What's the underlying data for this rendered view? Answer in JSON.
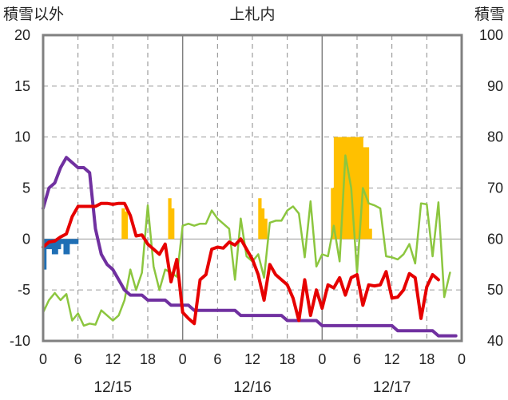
{
  "chart_data": {
    "type": "line",
    "title": "上札内",
    "ylabel_left": "積雪以外",
    "ylabel_right": "積雪",
    "ylim_left": [
      -10,
      20
    ],
    "yticks_left": [
      "20",
      "15",
      "10",
      "5",
      "0",
      "-5",
      "-10"
    ],
    "ylim_right": [
      40,
      100
    ],
    "yticks_right": [
      "100",
      "90",
      "80",
      "70",
      "60",
      "50",
      "40"
    ],
    "xlim_hours": [
      0,
      72
    ],
    "xtick_labels": [
      "0",
      "6",
      "12",
      "18",
      "0",
      "6",
      "12",
      "18",
      "0",
      "6",
      "12",
      "18",
      "0"
    ],
    "date_labels": [
      "12/15",
      "12/16",
      "12/17"
    ],
    "grid": true,
    "colors": {
      "temperature": "#e60000",
      "green_series": "#8cc63f",
      "snow_depth": "#7030a0",
      "orange_bars": "#ffc000",
      "blue_bars": "#1f6fb5",
      "frame": "#808080"
    },
    "series": [
      {
        "key": "temperature",
        "axis": "left",
        "x": [
          0,
          1,
          2,
          3,
          4,
          5,
          6,
          7,
          8,
          9,
          10,
          11,
          12,
          13,
          14,
          15,
          16,
          17,
          18,
          19,
          20,
          21,
          22,
          23,
          24,
          25,
          26,
          27,
          28,
          29,
          30,
          31,
          32,
          33,
          34,
          35,
          36,
          37,
          38,
          39,
          40,
          41,
          42,
          43,
          44,
          45,
          46,
          47,
          48,
          49,
          50,
          51,
          52,
          53,
          54,
          55,
          56,
          57,
          58,
          59,
          60,
          61,
          62,
          63,
          64,
          65,
          66,
          67,
          68,
          69,
          70,
          71,
          72
        ],
        "values": [
          -0.8,
          -0.3,
          -0.2,
          0.2,
          0.5,
          2.2,
          3.2,
          3.2,
          3.2,
          3.2,
          3.5,
          3.5,
          3.4,
          3.5,
          3.5,
          2.3,
          0.3,
          0.4,
          -0.5,
          -1.0,
          -1.5,
          -0.5,
          -4.2,
          -2.0,
          -7.2,
          -7.8,
          -8.3,
          -4.0,
          -3.5,
          -1.0,
          -0.8,
          -0.9,
          -0.3,
          -0.6,
          0.0,
          -1.0,
          -2.0,
          -3.5,
          -6.0,
          -2.5,
          -3.5,
          -4.0,
          -4.5,
          -5.8,
          -8.0,
          -4.0,
          -7.5,
          -5.0,
          -6.8,
          -4.5,
          -4.8,
          -3.8,
          -5.5,
          -3.8,
          -3.5,
          -6.5,
          -4.5,
          -4.6,
          -4.5,
          -3.2,
          -5.8,
          -5.7,
          -5.0,
          -3.4,
          -3.8,
          -7.8,
          -4.7,
          -3.5,
          -4.0,
          null,
          null,
          null,
          null
        ]
      },
      {
        "key": "green_series",
        "axis": "left",
        "x": [
          0,
          1,
          2,
          3,
          4,
          5,
          6,
          7,
          8,
          9,
          10,
          11,
          12,
          13,
          14,
          15,
          16,
          17,
          18,
          19,
          20,
          21,
          22,
          23,
          24,
          25,
          26,
          27,
          28,
          29,
          30,
          31,
          32,
          33,
          34,
          35,
          36,
          37,
          38,
          39,
          40,
          41,
          42,
          43,
          44,
          45,
          46,
          47,
          48,
          49,
          50,
          51,
          52,
          53,
          54,
          55,
          56,
          57,
          58,
          59,
          60,
          61,
          62,
          63,
          64,
          65,
          66,
          67,
          68,
          69,
          70,
          71,
          72
        ],
        "values": [
          -7.2,
          -6.0,
          -5.3,
          -6.0,
          -5.4,
          -8.0,
          -7.3,
          -8.5,
          -8.3,
          -8.4,
          -7.0,
          -7.5,
          -8.0,
          -7.5,
          -6.0,
          -3.0,
          -5.0,
          -3.3,
          3.3,
          -2.7,
          -5.0,
          -3.0,
          -3.3,
          -3.7,
          1.3,
          1.5,
          1.3,
          1.5,
          1.5,
          2.8,
          2.0,
          1.5,
          1.0,
          -4.0,
          2.0,
          -1.7,
          -2.2,
          -1.5,
          -3.8,
          1.6,
          1.8,
          1.8,
          2.8,
          3.2,
          2.5,
          -1.8,
          3.7,
          -2.7,
          -1.5,
          -1.7,
          1.3,
          -2.2,
          8.2,
          5.0,
          -3.3,
          5.0,
          3.5,
          3.3,
          3.0,
          -1.7,
          -1.8,
          -2.0,
          -1.5,
          -0.5,
          -2.4,
          3.5,
          3.4,
          -1.7,
          3.6,
          -5.7,
          -3.3,
          null,
          null
        ]
      },
      {
        "key": "snow_depth",
        "axis": "right",
        "x": [
          0,
          1,
          2,
          3,
          4,
          5,
          6,
          7,
          8,
          9,
          10,
          11,
          12,
          13,
          14,
          15,
          16,
          17,
          18,
          19,
          20,
          21,
          22,
          23,
          24,
          25,
          26,
          27,
          28,
          29,
          30,
          31,
          32,
          33,
          34,
          35,
          36,
          37,
          38,
          39,
          40,
          41,
          42,
          43,
          44,
          45,
          46,
          47,
          48,
          49,
          50,
          51,
          52,
          53,
          54,
          55,
          56,
          57,
          58,
          59,
          60,
          61,
          62,
          63,
          64,
          65,
          66,
          67,
          68,
          69,
          70,
          71,
          72
        ],
        "values": [
          66,
          70,
          71,
          74,
          76,
          75,
          74,
          74,
          73,
          62,
          57,
          55,
          54,
          52,
          50,
          49,
          49,
          49,
          48,
          48,
          48,
          48,
          47,
          47,
          47,
          47,
          46,
          46,
          46,
          46,
          46,
          46,
          46,
          46,
          45,
          45,
          45,
          45,
          45,
          45,
          45,
          45,
          44,
          44,
          44,
          44,
          44,
          44,
          43,
          43,
          43,
          43,
          43,
          43,
          43,
          43,
          43,
          43,
          43,
          43,
          43,
          42,
          42,
          42,
          42,
          42,
          42,
          42,
          41,
          41,
          41,
          41,
          null
        ]
      }
    ],
    "bars": [
      {
        "key": "orange_bars",
        "axis": "left",
        "x": [
          13.5,
          14,
          21.5,
          22,
          37,
          37.5,
          38,
          49.5,
          50,
          50.5,
          51,
          51.5,
          52,
          52.5,
          53,
          53.5,
          54,
          54.5,
          55,
          55.5,
          56
        ],
        "values": [
          3.0,
          2.7,
          4.0,
          3.0,
          4.0,
          3.0,
          2.0,
          5.0,
          10.0,
          10.0,
          10.0,
          10.0,
          10.0,
          10.0,
          10.0,
          10.0,
          10.0,
          10.0,
          9.0,
          9.0,
          1.0
        ]
      },
      {
        "key": "blue_bars",
        "axis": "left",
        "x": [
          0,
          0.5,
          1,
          1.5,
          2,
          2.5,
          3,
          3.5,
          4,
          4.5,
          5,
          5.5
        ],
        "values": [
          -3.0,
          -1.0,
          -1.0,
          -1.5,
          -1.5,
          -1.0,
          -0.5,
          -1.5,
          -1.5,
          -0.5,
          -0.5,
          -0.5
        ]
      }
    ]
  }
}
